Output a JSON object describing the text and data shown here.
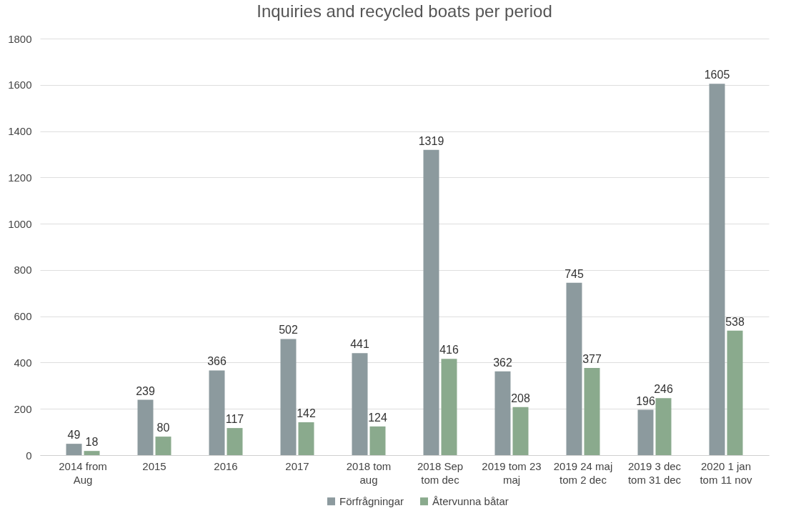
{
  "chart_data": {
    "type": "bar",
    "title": "Inquiries and recycled boats per period",
    "categories": [
      "2014 from Aug",
      "2015",
      "2016",
      "2017",
      "2018 tom aug",
      "2018 Sep tom dec",
      "2019 tom 23 maj",
      "2019 24 maj tom 2 dec",
      "2019 3 dec tom 31 dec",
      "2020 1 jan tom 11 nov"
    ],
    "series": [
      {
        "name": "Förfrågningar",
        "color": "#8c9a9e",
        "values": [
          49,
          239,
          366,
          502,
          441,
          1319,
          362,
          745,
          196,
          1605
        ]
      },
      {
        "name": "Återvunna båtar",
        "color": "#8aaa8d",
        "values": [
          18,
          80,
          117,
          142,
          124,
          416,
          208,
          377,
          246,
          538
        ]
      }
    ],
    "ylim": [
      0,
      1800
    ],
    "yticks": [
      0,
      200,
      400,
      600,
      800,
      1000,
      1200,
      1400,
      1600,
      1800
    ],
    "grid": "y",
    "legend": "bottom",
    "data_labels": true
  }
}
